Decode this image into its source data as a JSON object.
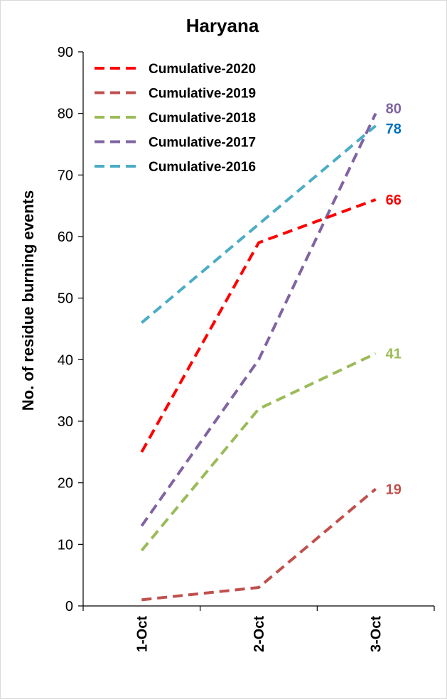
{
  "chart_data": {
    "type": "line",
    "title": "Haryana",
    "xlabel": "",
    "ylabel": "No. of residue burning events",
    "categories": [
      "1-Oct",
      "2-Oct",
      "3-Oct"
    ],
    "ylim": [
      0,
      90
    ],
    "yticks": [
      0,
      10,
      20,
      30,
      40,
      50,
      60,
      70,
      80,
      90
    ],
    "grid": false,
    "legend_position": "top-left",
    "line_style": "dashed",
    "series": [
      {
        "name": "Cumulative-2020",
        "values": [
          25,
          59,
          66
        ],
        "color": "#ff0000",
        "end_label": "66",
        "label_color": "#ff0000"
      },
      {
        "name": "Cumulative-2019",
        "values": [
          1,
          3,
          19
        ],
        "color": "#c0504d",
        "end_label": "19",
        "label_color": "#c0504d"
      },
      {
        "name": "Cumulative-2018",
        "values": [
          9,
          32,
          41
        ],
        "color": "#9bbb59",
        "end_label": "41",
        "label_color": "#9bbb59"
      },
      {
        "name": "Cumulative-2017",
        "values": [
          13,
          40,
          80
        ],
        "color": "#8064a2",
        "end_label": "80",
        "label_color": "#8064a2"
      },
      {
        "name": "Cumulative-2016",
        "values": [
          46,
          62,
          78
        ],
        "color": "#4bacc6",
        "end_label": "78",
        "label_color": "#0070c0"
      }
    ]
  }
}
